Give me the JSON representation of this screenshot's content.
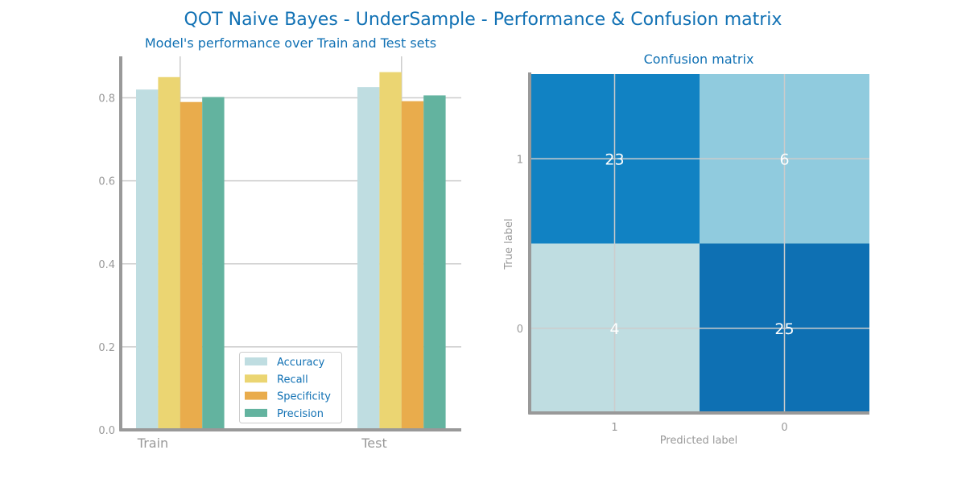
{
  "suptitle": "QOT Naive Bayes - UnderSample - Performance & Confusion matrix",
  "chart_data": [
    {
      "type": "bar",
      "title": "Model's performance over Train and Test sets",
      "categories": [
        "Train",
        "Test"
      ],
      "series": [
        {
          "name": "Accuracy",
          "color": "#bfdde1",
          "values": [
            0.82,
            0.826
          ]
        },
        {
          "name": "Recall",
          "color": "#ebd572",
          "values": [
            0.85,
            0.862
          ]
        },
        {
          "name": "Specificity",
          "color": "#e9ac4c",
          "values": [
            0.79,
            0.792
          ]
        },
        {
          "name": "Precision",
          "color": "#63b39f",
          "values": [
            0.802,
            0.806
          ]
        }
      ],
      "ylim": [
        0,
        0.9
      ],
      "yticks": [
        "0.0",
        "0.2",
        "0.4",
        "0.6",
        "0.8"
      ],
      "grid": true,
      "legend": "lower-center"
    },
    {
      "type": "heatmap",
      "title": "Confusion matrix",
      "xlabel": "Predicted label",
      "ylabel": "True label",
      "x_ticks": [
        "1",
        "0"
      ],
      "y_ticks": [
        "1",
        "0"
      ],
      "matrix": [
        [
          23,
          6
        ],
        [
          4,
          25
        ]
      ],
      "cell_colors": [
        [
          "#1182c3",
          "#90cbde"
        ],
        [
          "#bfdde1",
          "#0e70b3"
        ]
      ]
    }
  ]
}
